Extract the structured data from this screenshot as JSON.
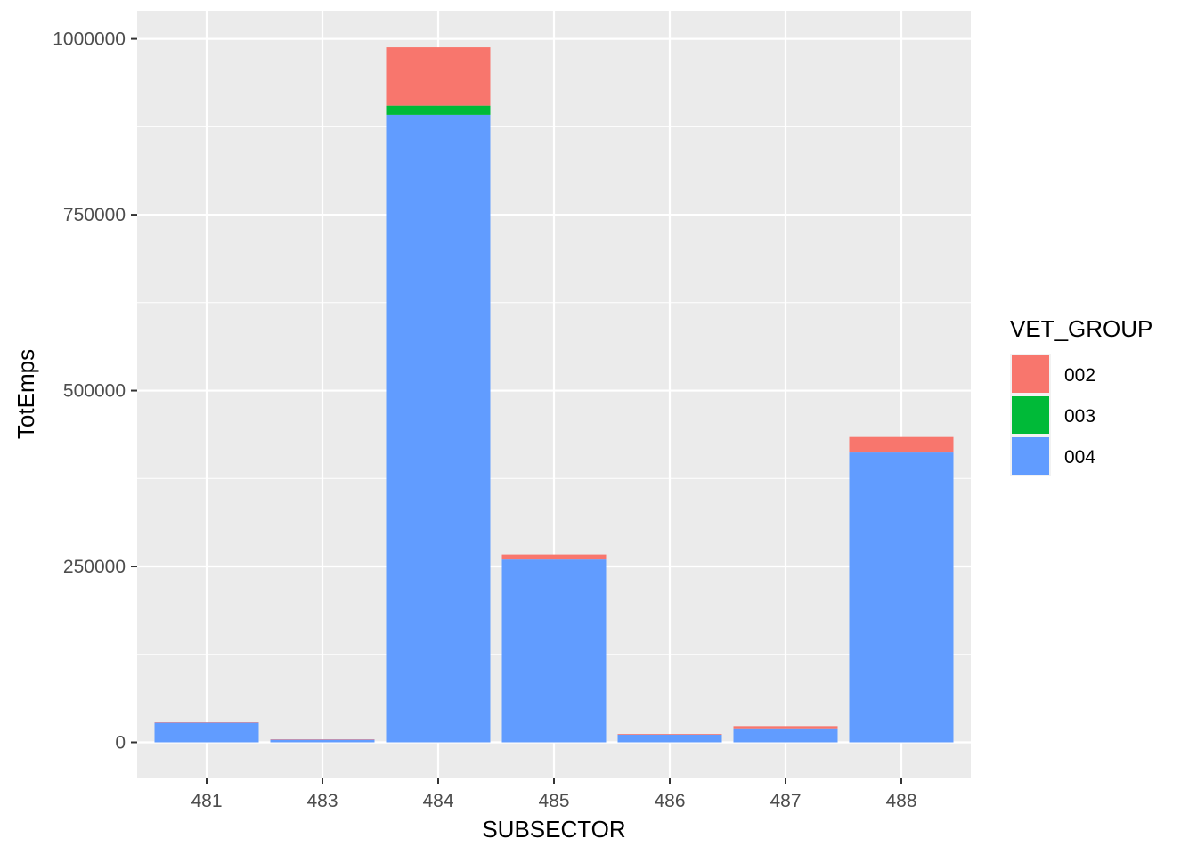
{
  "chart_data": {
    "type": "bar",
    "stacked": true,
    "xlabel": "SUBSECTOR",
    "ylabel": "TotEmps",
    "categories": [
      "481",
      "483",
      "484",
      "485",
      "486",
      "487",
      "488"
    ],
    "series": [
      {
        "name": "002",
        "color": "#F8766D",
        "values": [
          300,
          200,
          83000,
          7000,
          1000,
          3000,
          22000
        ]
      },
      {
        "name": "003",
        "color": "#00BA38",
        "values": [
          0,
          0,
          13000,
          0,
          0,
          0,
          0
        ]
      },
      {
        "name": "004",
        "color": "#619CFF",
        "values": [
          28000,
          4000,
          892000,
          260000,
          11000,
          20000,
          412000
        ]
      }
    ],
    "ylim": [
      -50000,
      1040000
    ],
    "yticks": [
      0,
      250000,
      500000,
      750000,
      1000000
    ],
    "ytick_labels": [
      "0",
      "250000",
      "500000",
      "750000",
      "1000000"
    ],
    "grid": true,
    "panel_background": "#EBEBEB",
    "grid_color": "#FFFFFF",
    "legend": {
      "title": "VET_GROUP",
      "placement": "right",
      "entries": [
        {
          "label": "002",
          "color": "#F8766D"
        },
        {
          "label": "003",
          "color": "#00BA38"
        },
        {
          "label": "004",
          "color": "#619CFF"
        }
      ]
    }
  }
}
